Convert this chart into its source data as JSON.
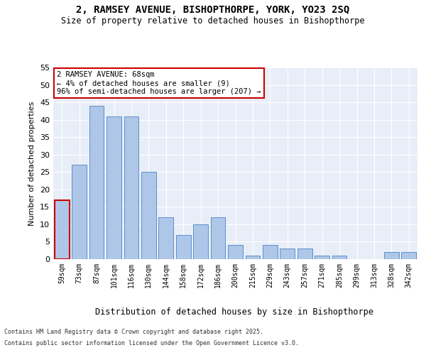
{
  "title_line1": "2, RAMSEY AVENUE, BISHOPTHORPE, YORK, YO23 2SQ",
  "title_line2": "Size of property relative to detached houses in Bishopthorpe",
  "xlabel": "Distribution of detached houses by size in Bishopthorpe",
  "ylabel": "Number of detached properties",
  "categories": [
    "59sqm",
    "73sqm",
    "87sqm",
    "101sqm",
    "116sqm",
    "130sqm",
    "144sqm",
    "158sqm",
    "172sqm",
    "186sqm",
    "200sqm",
    "215sqm",
    "229sqm",
    "243sqm",
    "257sqm",
    "271sqm",
    "285sqm",
    "299sqm",
    "313sqm",
    "328sqm",
    "342sqm"
  ],
  "values": [
    17,
    27,
    44,
    41,
    41,
    25,
    12,
    7,
    10,
    12,
    4,
    1,
    4,
    3,
    3,
    1,
    1,
    0,
    0,
    2,
    2
  ],
  "bar_color": "#aec6e8",
  "bar_edge_color": "#5b8fc9",
  "highlight_bar_index": 0,
  "highlight_edge_color": "#cc0000",
  "ylim": [
    0,
    55
  ],
  "yticks": [
    0,
    5,
    10,
    15,
    20,
    25,
    30,
    35,
    40,
    45,
    50,
    55
  ],
  "background_color": "#e8eef8",
  "grid_color": "#ffffff",
  "annotation_text": "2 RAMSEY AVENUE: 68sqm\n← 4% of detached houses are smaller (9)\n96% of semi-detached houses are larger (207) →",
  "annotation_box_edge_color": "#cc0000",
  "footer_line1": "Contains HM Land Registry data © Crown copyright and database right 2025.",
  "footer_line2": "Contains public sector information licensed under the Open Government Licence v3.0."
}
